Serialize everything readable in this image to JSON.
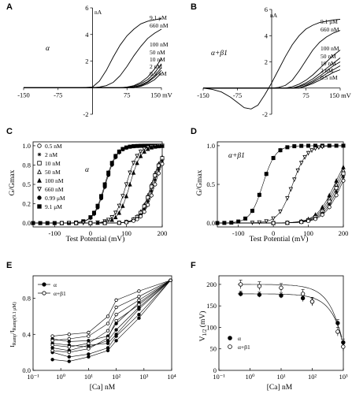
{
  "chart_data": [
    {
      "panel": "A",
      "type": "line",
      "series_label": "α",
      "y_unit": "nA",
      "x_unit": "mV",
      "xlim": [
        -150,
        150
      ],
      "ylim": [
        -2,
        6
      ],
      "x_ticks": [
        -150,
        -75,
        75,
        150
      ],
      "y_ticks": [
        -2,
        2,
        4,
        6
      ],
      "x_tick_labels": [
        "-150",
        "-75",
        "75",
        "150 mV"
      ],
      "y_tick_labels": [
        "-2",
        "2",
        "4",
        "6"
      ],
      "legend": [
        "9.1 μM",
        "660 nM",
        "100 nM",
        "50 nM",
        "10 nM",
        "2 nM",
        "0.5 nM"
      ],
      "series": [
        {
          "name": "9.1 μM",
          "x": [
            -150,
            -75,
            -25,
            0,
            15,
            30,
            45,
            60,
            75,
            90,
            105,
            120,
            135,
            150
          ],
          "y": [
            0,
            0,
            0,
            0.05,
            0.5,
            1.3,
            2.3,
            3.2,
            3.9,
            4.4,
            4.8,
            5.0,
            5.1,
            5.2
          ]
        },
        {
          "name": "660 nM",
          "x": [
            -150,
            0,
            15,
            30,
            45,
            60,
            75,
            90,
            105,
            120,
            135,
            150
          ],
          "y": [
            0,
            0,
            0.05,
            0.15,
            0.4,
            0.9,
            1.6,
            2.4,
            3.1,
            3.7,
            4.1,
            4.4
          ]
        },
        {
          "name": "100 nM",
          "x": [
            -150,
            60,
            75,
            90,
            105,
            120,
            135,
            150
          ],
          "y": [
            0,
            0,
            0.05,
            0.15,
            0.4,
            0.8,
            1.4,
            2.2
          ]
        },
        {
          "name": "50 nM",
          "x": [
            -150,
            75,
            90,
            105,
            120,
            135,
            150
          ],
          "y": [
            0,
            0,
            0.1,
            0.3,
            0.6,
            1.1,
            1.8
          ]
        },
        {
          "name": "10 nM",
          "x": [
            -150,
            75,
            90,
            105,
            120,
            135,
            150
          ],
          "y": [
            0,
            0,
            0.05,
            0.2,
            0.45,
            0.9,
            1.5
          ]
        },
        {
          "name": "2 nM",
          "x": [
            -150,
            90,
            105,
            120,
            135,
            150
          ],
          "y": [
            0,
            0,
            0.15,
            0.4,
            0.8,
            1.3
          ]
        },
        {
          "name": "0.5 nM",
          "x": [
            -150,
            90,
            105,
            120,
            135,
            150
          ],
          "y": [
            0,
            0,
            0.1,
            0.3,
            0.6,
            1.1
          ]
        }
      ]
    },
    {
      "panel": "B",
      "type": "line",
      "series_label": "α+β1",
      "y_unit": "nA",
      "x_unit": "mV",
      "xlim": [
        -150,
        150
      ],
      "ylim": [
        -2,
        6
      ],
      "x_ticks": [
        -150,
        -75,
        75,
        150
      ],
      "y_ticks": [
        -2,
        2,
        4,
        6
      ],
      "x_tick_labels": [
        "-150",
        "-75",
        "75",
        "150 mV"
      ],
      "y_tick_labels": [
        "-2",
        "2",
        "4",
        "6"
      ],
      "legend": [
        "9.1 μM",
        "660 nM",
        "100 nM",
        "50 nM",
        "10 nM",
        "2 nM",
        "0.5 nM"
      ],
      "series": [
        {
          "name": "9.1 μM",
          "x": [
            -150,
            -130,
            -110,
            -90,
            -75,
            -60,
            -45,
            -30,
            -15,
            0,
            15,
            30,
            45,
            60,
            75,
            90,
            105,
            120,
            135,
            150
          ],
          "y": [
            0,
            -0.1,
            -0.3,
            -0.7,
            -1.1,
            -1.5,
            -1.6,
            -1.3,
            -0.5,
            0.4,
            1.4,
            2.4,
            3.3,
            4.0,
            4.5,
            4.8,
            5.0,
            5.1,
            5.2,
            5.25
          ]
        },
        {
          "name": "660 nM",
          "x": [
            -150,
            0,
            15,
            30,
            45,
            60,
            75,
            90,
            105,
            120,
            135,
            150
          ],
          "y": [
            0,
            0,
            0.05,
            0.2,
            0.6,
            1.3,
            2.1,
            2.9,
            3.5,
            3.9,
            4.2,
            4.4
          ]
        },
        {
          "name": "100 nM",
          "x": [
            -150,
            30,
            45,
            60,
            75,
            90,
            105,
            120,
            135,
            150
          ],
          "y": [
            0,
            0,
            0.1,
            0.3,
            0.6,
            1.0,
            1.5,
            2.0,
            2.5,
            2.9
          ]
        },
        {
          "name": "50 nM",
          "x": [
            -150,
            45,
            60,
            75,
            90,
            105,
            120,
            135,
            150
          ],
          "y": [
            0,
            0,
            0.15,
            0.4,
            0.7,
            1.1,
            1.5,
            1.9,
            2.3
          ]
        },
        {
          "name": "10 nM",
          "x": [
            -150,
            45,
            60,
            75,
            90,
            105,
            120,
            135,
            150
          ],
          "y": [
            0,
            0,
            0.1,
            0.3,
            0.55,
            0.9,
            1.3,
            1.7,
            2.0
          ]
        },
        {
          "name": "2 nM",
          "x": [
            -150,
            60,
            75,
            90,
            105,
            120,
            135,
            150
          ],
          "y": [
            0,
            0,
            0.2,
            0.45,
            0.75,
            1.1,
            1.4,
            1.7
          ]
        },
        {
          "name": "0.5 nM",
          "x": [
            -150,
            60,
            75,
            90,
            105,
            120,
            135,
            150
          ],
          "y": [
            0,
            0,
            0.15,
            0.35,
            0.6,
            0.9,
            1.2,
            1.4
          ]
        }
      ]
    },
    {
      "panel": "C",
      "type": "scatter",
      "series_label": "α",
      "ylabel": "G/Gmax",
      "xlabel": "Test Potential (mV)",
      "xlim": [
        -160,
        200
      ],
      "ylim": [
        -0.05,
        1.05
      ],
      "x_ticks": [
        -100,
        0,
        100,
        200
      ],
      "y_ticks": [
        0.0,
        0.25,
        0.5,
        0.75,
        1.0
      ],
      "x_tick_labels": [
        "-100",
        "0",
        "100",
        "200"
      ],
      "y_tick_labels": [
        "0.0",
        "0.2",
        "0.5",
        "0.8",
        "1.0"
      ],
      "legend": [
        "0.5 nM",
        "2 nM",
        "10 nM",
        "50 nM",
        "100 nM",
        "660 nM",
        "0.99 μM",
        "9.1 μM"
      ],
      "markers": [
        "circle-open",
        "asterisk",
        "square-open",
        "triangle-open",
        "triangle-filled",
        "triangle-down-open",
        "circle-filled",
        "square-filled"
      ],
      "series": [
        {
          "name": "9.1 μM",
          "v_half": 40,
          "k": 16,
          "x": [
            -160,
            -140,
            -120,
            -100,
            -80,
            -60,
            -40,
            -20,
            0,
            10,
            20,
            30,
            40,
            50,
            60,
            70,
            80,
            90,
            100,
            110,
            120,
            130,
            140,
            150,
            160,
            170,
            180,
            190,
            200
          ]
        },
        {
          "name": "0.99 μM",
          "v_half": 42,
          "k": 16,
          "x": [
            -20,
            0,
            10,
            20,
            30,
            40,
            50,
            60,
            70,
            80,
            90,
            100,
            110,
            120
          ]
        },
        {
          "name": "660 nM",
          "v_half": 100,
          "k": 16,
          "x": [
            -60,
            -40,
            -20,
            0,
            20,
            40,
            50,
            60,
            70,
            80,
            90,
            100,
            110,
            120,
            130,
            140,
            150,
            160,
            170,
            180,
            190,
            200
          ]
        },
        {
          "name": "100 nM",
          "v_half": 110,
          "k": 16,
          "x": [
            0,
            20,
            40,
            60,
            70,
            80,
            90,
            100,
            110,
            120,
            130,
            140,
            150,
            160,
            170,
            180,
            190,
            200
          ]
        },
        {
          "name": "50 nM",
          "v_half": 170,
          "k": 17,
          "x": [
            -80,
            -40,
            0,
            40,
            80,
            100,
            120,
            130,
            140,
            150,
            160,
            170,
            180,
            190,
            200
          ]
        },
        {
          "name": "10 nM",
          "v_half": 172,
          "k": 17,
          "x": [
            -80,
            -40,
            0,
            40,
            80,
            100,
            120,
            130,
            140,
            150,
            160,
            170,
            180,
            190,
            200
          ]
        },
        {
          "name": "2 nM",
          "v_half": 176,
          "k": 17,
          "x": [
            -80,
            -40,
            0,
            40,
            80,
            100,
            120,
            130,
            140,
            150,
            160,
            170,
            180,
            190,
            200
          ]
        },
        {
          "name": "0.5 nM",
          "v_half": 180,
          "k": 17,
          "x": [
            -80,
            -40,
            0,
            40,
            80,
            100,
            120,
            130,
            140,
            150,
            160,
            170,
            180,
            190,
            200
          ]
        }
      ]
    },
    {
      "panel": "D",
      "type": "scatter",
      "series_label": "α+β1",
      "ylabel": "G/Gmax",
      "xlabel": "Test Potential (mV)",
      "xlim": [
        -160,
        200
      ],
      "ylim": [
        -0.05,
        1.05
      ],
      "x_ticks": [
        -100,
        0,
        100,
        200
      ],
      "y_ticks": [
        0.0,
        0.5,
        1.0
      ],
      "x_tick_labels": [
        "-100",
        "0",
        "100",
        "200"
      ],
      "y_tick_labels": [
        "0.0",
        "0.5",
        "1.0"
      ],
      "series": [
        {
          "name": "9.1 μM",
          "v_half": -30,
          "k": 18,
          "x": [
            -160,
            -140,
            -120,
            -100,
            -80,
            -60,
            -40,
            -20,
            0,
            20,
            40,
            60,
            80,
            100,
            120,
            140,
            160,
            180,
            200
          ]
        },
        {
          "name": "660 nM",
          "v_half": 55,
          "k": 20,
          "x": [
            -60,
            -40,
            -20,
            0,
            20,
            40,
            50,
            60,
            70,
            80,
            90,
            100,
            110,
            120,
            130,
            140
          ]
        },
        {
          "name": "100 nM",
          "v_half": 175,
          "k": 26,
          "x": [
            0,
            40,
            80,
            100,
            120,
            140,
            160,
            180,
            200
          ]
        },
        {
          "name": "50 nM",
          "v_half": 180,
          "k": 26,
          "x": [
            0,
            40,
            80,
            100,
            120,
            140,
            160,
            180,
            200
          ]
        },
        {
          "name": "10 nM",
          "v_half": 185,
          "k": 26,
          "x": [
            0,
            40,
            80,
            100,
            120,
            140,
            160,
            180,
            200
          ]
        },
        {
          "name": "2 nM",
          "v_half": 190,
          "k": 26,
          "x": [
            0,
            40,
            80,
            100,
            120,
            140,
            160,
            180,
            200
          ]
        },
        {
          "name": "0.5 nM",
          "v_half": 195,
          "k": 26,
          "x": [
            0,
            40,
            80,
            100,
            120,
            140,
            160,
            180,
            200
          ]
        }
      ]
    },
    {
      "panel": "E",
      "type": "line",
      "ylabel": "I_Ramp / I_Ramp(9.1 μM)",
      "xlabel": "[Ca] nM",
      "xscale": "log",
      "xlim": [
        0.1,
        10000
      ],
      "ylim": [
        0,
        1.05
      ],
      "x_tick_labels": [
        "10⁻¹",
        "10⁰",
        "10¹",
        "10²",
        "10³",
        "10⁴"
      ],
      "y_tick_labels": [
        "0.0",
        "0.4",
        "0.8"
      ],
      "legend": [
        "α",
        "α+β1"
      ],
      "x": [
        0.5,
        2,
        10,
        50,
        100,
        660,
        9100
      ],
      "series": [
        {
          "name": "α",
          "marker": "filled",
          "y": [
            0.35,
            0.32,
            0.33,
            0.38,
            0.52,
            0.75,
            1.0
          ]
        },
        {
          "name": "α",
          "marker": "filled",
          "y": [
            0.3,
            0.28,
            0.26,
            0.33,
            0.45,
            0.7,
            1.0
          ]
        },
        {
          "name": "α",
          "marker": "filled",
          "y": [
            0.25,
            0.22,
            0.28,
            0.3,
            0.4,
            0.68,
            1.0
          ]
        },
        {
          "name": "α",
          "marker": "filled",
          "y": [
            0.2,
            0.15,
            0.18,
            0.25,
            0.38,
            0.62,
            1.0
          ]
        },
        {
          "name": "α",
          "marker": "filled",
          "y": [
            0.12,
            0.1,
            0.15,
            0.22,
            0.33,
            0.58,
            1.0
          ]
        },
        {
          "name": "α+β1",
          "marker": "open",
          "y": [
            0.38,
            0.4,
            0.42,
            0.6,
            0.78,
            0.88,
            1.0
          ]
        },
        {
          "name": "α+β1",
          "marker": "open",
          "y": [
            0.33,
            0.35,
            0.38,
            0.52,
            0.7,
            0.82,
            1.0
          ]
        },
        {
          "name": "α+β1",
          "marker": "open",
          "y": [
            0.28,
            0.26,
            0.3,
            0.44,
            0.62,
            0.78,
            1.0
          ]
        },
        {
          "name": "α+β1",
          "marker": "open",
          "y": [
            0.22,
            0.2,
            0.24,
            0.36,
            0.55,
            0.73,
            1.0
          ]
        }
      ]
    },
    {
      "panel": "F",
      "type": "scatter",
      "ylabel": "V1/2 (mV)",
      "xlabel": "[Ca] nM",
      "xscale": "log",
      "xlim": [
        0.1,
        1000
      ],
      "ylim": [
        0,
        220
      ],
      "x_tick_labels": [
        "10⁻¹",
        "10⁰",
        "10¹",
        "10²",
        "10³"
      ],
      "y_ticks": [
        0,
        50,
        100,
        150,
        200
      ],
      "y_tick_labels": [
        "0",
        "50",
        "100",
        "150",
        "200"
      ],
      "legend": [
        "α",
        "α+β1"
      ],
      "x": [
        0.5,
        2,
        10,
        50,
        100,
        660,
        990
      ],
      "series": [
        {
          "name": "α",
          "marker": "filled",
          "y": [
            178,
            176,
            174,
            168,
            160,
            110,
            65
          ],
          "err": [
            6,
            6,
            6,
            8,
            8,
            8,
            8
          ]
        },
        {
          "name": "α+β1",
          "marker": "open",
          "y": [
            200,
            196,
            192,
            178,
            160,
            90,
            55
          ],
          "err": [
            10,
            10,
            10,
            10,
            10,
            10,
            10
          ]
        }
      ]
    }
  ]
}
